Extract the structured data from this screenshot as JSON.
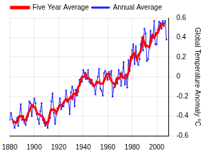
{
  "chart_data": {
    "type": "line",
    "y_label": "Global Temperature Anomaly °C",
    "x": [
      1880,
      1881,
      1882,
      1883,
      1884,
      1885,
      1886,
      1887,
      1888,
      1889,
      1890,
      1891,
      1892,
      1893,
      1894,
      1895,
      1896,
      1897,
      1898,
      1899,
      1900,
      1901,
      1902,
      1903,
      1904,
      1905,
      1906,
      1907,
      1908,
      1909,
      1910,
      1911,
      1912,
      1913,
      1914,
      1915,
      1916,
      1917,
      1918,
      1919,
      1920,
      1921,
      1922,
      1923,
      1924,
      1925,
      1926,
      1927,
      1928,
      1929,
      1930,
      1931,
      1932,
      1933,
      1934,
      1935,
      1936,
      1937,
      1938,
      1939,
      1940,
      1941,
      1942,
      1943,
      1944,
      1945,
      1946,
      1947,
      1948,
      1949,
      1950,
      1951,
      1952,
      1953,
      1954,
      1955,
      1956,
      1957,
      1958,
      1959,
      1960,
      1961,
      1962,
      1963,
      1964,
      1965,
      1966,
      1967,
      1968,
      1969,
      1970,
      1971,
      1972,
      1973,
      1974,
      1975,
      1976,
      1977,
      1978,
      1979,
      1980,
      1981,
      1982,
      1983,
      1984,
      1985,
      1986,
      1987,
      1988,
      1989,
      1990,
      1991,
      1992,
      1993,
      1994,
      1995,
      1996,
      1997,
      1998,
      1999,
      2000,
      2001,
      2002,
      2003,
      2004,
      2005,
      2006,
      2007,
      2008
    ],
    "series": [
      {
        "name": "Annual Average",
        "color": "#2222ee",
        "marker": "square",
        "line_style": "solid",
        "values": [
          -0.44,
          -0.37,
          -0.43,
          -0.47,
          -0.52,
          -0.46,
          -0.42,
          -0.5,
          -0.4,
          -0.28,
          -0.44,
          -0.4,
          -0.47,
          -0.49,
          -0.44,
          -0.4,
          -0.25,
          -0.27,
          -0.4,
          -0.3,
          -0.22,
          -0.27,
          -0.38,
          -0.43,
          -0.48,
          -0.35,
          -0.27,
          -0.44,
          -0.47,
          -0.5,
          -0.46,
          -0.52,
          -0.45,
          -0.42,
          -0.25,
          -0.17,
          -0.37,
          -0.48,
          -0.38,
          -0.32,
          -0.3,
          -0.22,
          -0.33,
          -0.3,
          -0.3,
          -0.25,
          -0.14,
          -0.23,
          -0.24,
          -0.38,
          -0.16,
          -0.1,
          -0.14,
          -0.3,
          -0.13,
          -0.19,
          -0.15,
          -0.03,
          -0.02,
          -0.05,
          0.07,
          0.04,
          -0.02,
          -0.02,
          0.07,
          -0.05,
          -0.07,
          -0.03,
          -0.07,
          -0.1,
          -0.18,
          -0.06,
          0.0,
          0.08,
          -0.12,
          -0.14,
          -0.19,
          0.04,
          0.06,
          0.03,
          -0.03,
          0.05,
          0.02,
          0.06,
          -0.2,
          -0.11,
          -0.06,
          -0.02,
          -0.07,
          0.07,
          0.03,
          -0.09,
          0.01,
          0.15,
          -0.08,
          -0.02,
          -0.11,
          0.17,
          0.06,
          0.16,
          0.27,
          0.33,
          0.13,
          0.31,
          0.16,
          0.12,
          0.18,
          0.33,
          0.4,
          0.27,
          0.49,
          0.44,
          0.16,
          0.18,
          0.31,
          0.47,
          0.36,
          0.4,
          0.57,
          0.33,
          0.33,
          0.48,
          0.56,
          0.55,
          0.49,
          0.57,
          0.54,
          0.57,
          0.38
        ]
      },
      {
        "name": "Five Year Average",
        "color": "#ff0000",
        "marker": "none",
        "line_style": "solid",
        "values": [
          null,
          null,
          -0.45,
          -0.45,
          -0.46,
          -0.47,
          -0.46,
          -0.41,
          -0.41,
          -0.4,
          -0.4,
          -0.42,
          -0.45,
          -0.44,
          -0.41,
          -0.37,
          -0.35,
          -0.32,
          -0.29,
          -0.29,
          -0.31,
          -0.32,
          -0.36,
          -0.38,
          -0.38,
          -0.39,
          -0.4,
          -0.41,
          -0.43,
          -0.48,
          -0.48,
          -0.47,
          -0.42,
          -0.36,
          -0.33,
          -0.34,
          -0.33,
          -0.34,
          -0.37,
          -0.34,
          -0.31,
          -0.29,
          -0.29,
          -0.28,
          -0.26,
          -0.24,
          -0.23,
          -0.25,
          -0.23,
          -0.22,
          -0.2,
          -0.22,
          -0.17,
          -0.17,
          -0.18,
          -0.16,
          -0.1,
          -0.09,
          -0.04,
          0.0,
          0.0,
          0.0,
          0.03,
          0.0,
          -0.02,
          -0.02,
          -0.03,
          -0.06,
          -0.09,
          -0.09,
          -0.08,
          -0.05,
          -0.06,
          -0.05,
          -0.07,
          -0.07,
          -0.07,
          -0.04,
          -0.02,
          0.03,
          0.03,
          0.03,
          -0.02,
          -0.04,
          -0.06,
          -0.07,
          -0.09,
          -0.04,
          -0.01,
          -0.02,
          -0.01,
          0.03,
          0.0,
          -0.01,
          -0.01,
          0.02,
          0.0,
          0.05,
          0.11,
          0.2,
          0.19,
          0.24,
          0.24,
          0.21,
          0.18,
          0.22,
          0.24,
          0.26,
          0.33,
          0.39,
          0.35,
          0.31,
          0.32,
          0.31,
          0.3,
          0.34,
          0.42,
          0.43,
          0.4,
          0.42,
          0.45,
          0.45,
          0.48,
          0.53,
          0.54,
          0.54,
          0.51,
          null,
          null
        ]
      }
    ],
    "xlim": [
      1880,
      2010
    ],
    "xticks": [
      1880,
      1900,
      1920,
      1940,
      1960,
      1980,
      2000
    ],
    "ylim": [
      -0.6,
      0.6
    ],
    "yticks": [
      -0.6,
      -0.4,
      -0.2,
      0,
      0.2,
      0.4,
      0.6
    ],
    "grid": true,
    "legend": "upper left"
  }
}
